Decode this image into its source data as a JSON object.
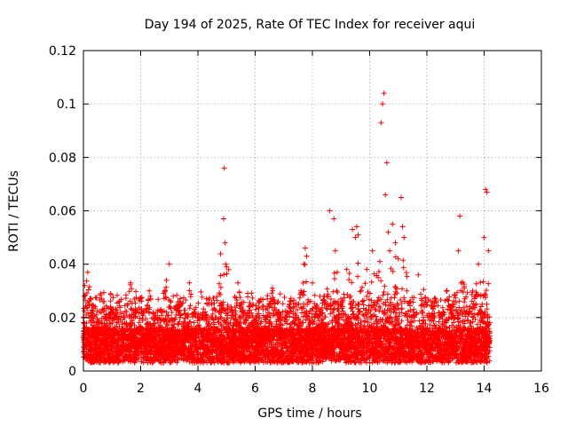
{
  "chart_data": {
    "type": "scatter",
    "title": "Day 194 of 2025, Rate Of TEC Index for receiver aqui",
    "xlabel": "GPS time / hours",
    "ylabel": "ROTI / TECUs",
    "xlim": [
      0,
      16
    ],
    "ylim": [
      0,
      0.12
    ],
    "grid": true,
    "marker": "+",
    "color": "#ff0000",
    "x_ticks": [
      0,
      2,
      4,
      6,
      8,
      10,
      12,
      14,
      16
    ],
    "x_tick_labels": [
      "0",
      "2",
      "4",
      "6",
      "8",
      "10",
      "12",
      "14",
      "16"
    ],
    "y_ticks": [
      0,
      0.02,
      0.04,
      0.06,
      0.08,
      0.1,
      0.12
    ],
    "y_tick_labels": [
      "0",
      "0.02",
      "0.04",
      "0.06",
      "0.08",
      "0.1",
      "0.12"
    ],
    "series": [
      {
        "name": "ROTI",
        "x": [
          0.05,
          0.1,
          0.15,
          0.2,
          0.3,
          0.45,
          0.6,
          0.8,
          0.95,
          1.1,
          1.3,
          1.5,
          1.65,
          1.8,
          1.95,
          2.1,
          2.3,
          2.5,
          2.7,
          2.9,
          3.0,
          3.1,
          3.3,
          3.5,
          3.7,
          3.9,
          4.0,
          4.2,
          4.4,
          4.6,
          4.8,
          4.9,
          4.92,
          4.95,
          4.97,
          5.0,
          5.2,
          5.4,
          5.6,
          5.8,
          6.0,
          6.2,
          6.4,
          6.6,
          6.8,
          7.0,
          7.2,
          7.4,
          7.6,
          7.75,
          7.8,
          8.0,
          8.2,
          8.4,
          8.6,
          8.75,
          8.8,
          8.85,
          9.0,
          9.2,
          9.4,
          9.5,
          9.55,
          9.6,
          9.7,
          9.9,
          10.1,
          10.3,
          10.4,
          10.45,
          10.5,
          10.55,
          10.6,
          10.65,
          10.7,
          10.8,
          10.9,
          11.0,
          11.1,
          11.15,
          11.2,
          11.3,
          11.5,
          11.7,
          11.9,
          12.1,
          12.3,
          12.5,
          12.7,
          12.9,
          13.1,
          13.15,
          13.2,
          13.4,
          13.6,
          13.8,
          14.0,
          14.05,
          14.1,
          14.15
        ],
        "y": [
          0.032,
          0.021,
          0.037,
          0.026,
          0.015,
          0.012,
          0.029,
          0.011,
          0.024,
          0.014,
          0.022,
          0.018,
          0.033,
          0.013,
          0.027,
          0.012,
          0.03,
          0.016,
          0.023,
          0.034,
          0.04,
          0.019,
          0.025,
          0.013,
          0.033,
          0.022,
          0.017,
          0.011,
          0.02,
          0.014,
          0.025,
          0.057,
          0.076,
          0.048,
          0.04,
          0.039,
          0.021,
          0.033,
          0.015,
          0.024,
          0.018,
          0.027,
          0.016,
          0.031,
          0.022,
          0.012,
          0.025,
          0.019,
          0.03,
          0.046,
          0.043,
          0.033,
          0.02,
          0.028,
          0.06,
          0.057,
          0.045,
          0.03,
          0.025,
          0.038,
          0.053,
          0.05,
          0.054,
          0.051,
          0.03,
          0.038,
          0.045,
          0.035,
          0.093,
          0.1,
          0.104,
          0.066,
          0.078,
          0.052,
          0.045,
          0.055,
          0.048,
          0.042,
          0.065,
          0.054,
          0.05,
          0.03,
          0.02,
          0.036,
          0.025,
          0.019,
          0.027,
          0.021,
          0.03,
          0.025,
          0.045,
          0.058,
          0.033,
          0.022,
          0.03,
          0.04,
          0.05,
          0.068,
          0.067,
          0.045
        ]
      }
    ]
  }
}
